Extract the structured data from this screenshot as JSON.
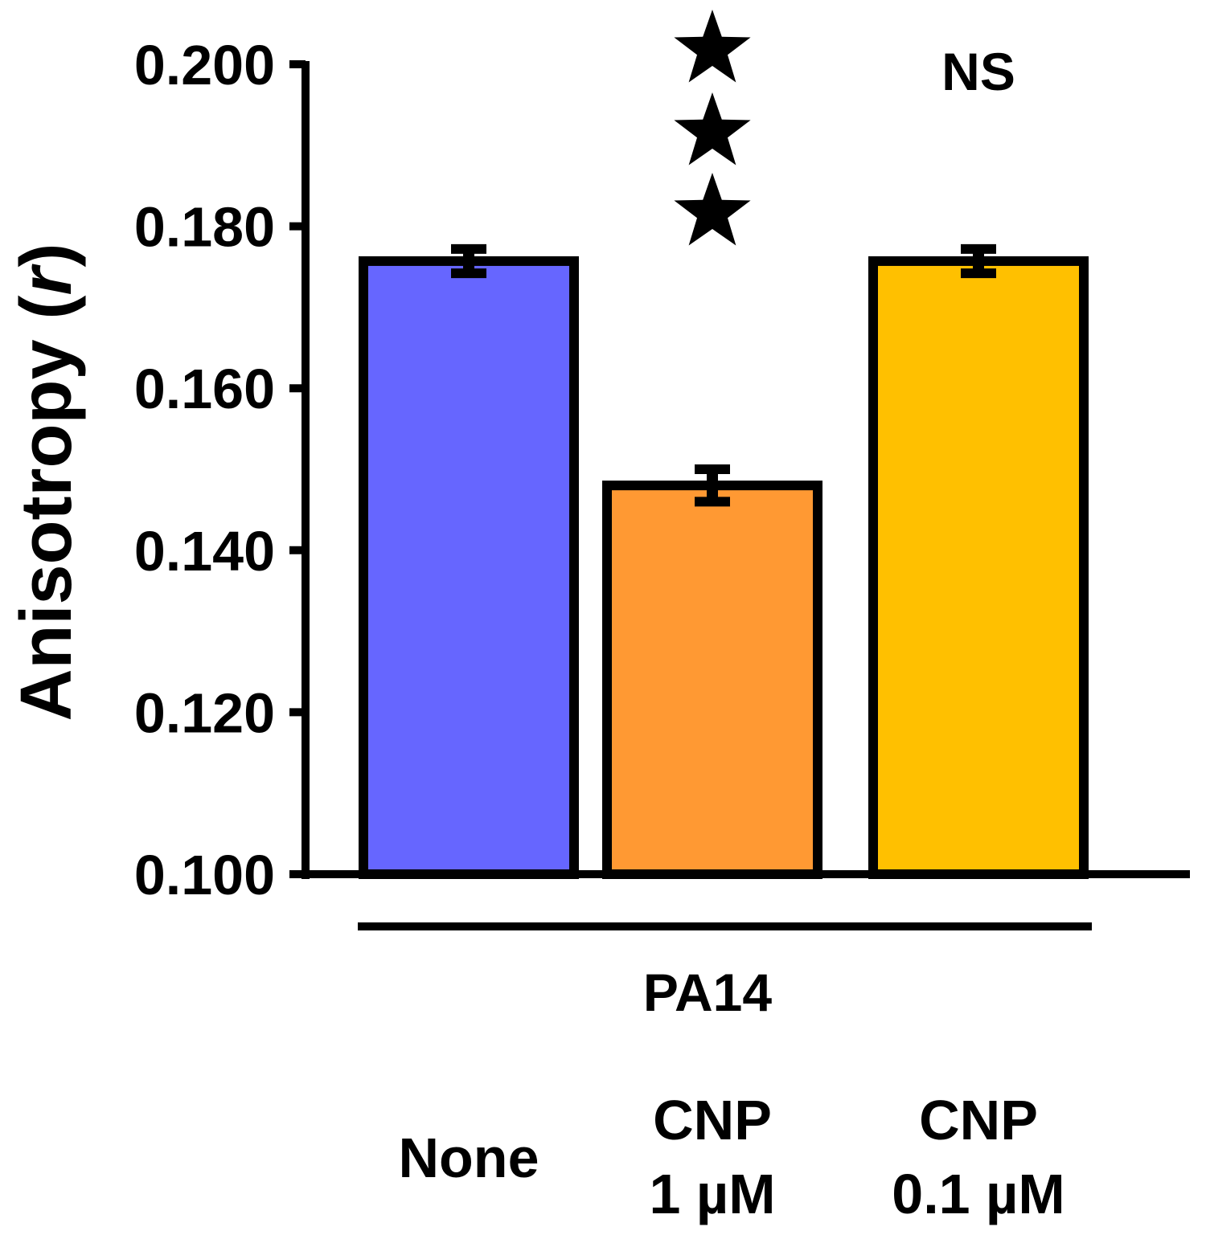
{
  "chart_data": {
    "type": "bar",
    "ylabel": "Anisotropy",
    "ylabel_symbol": "r",
    "ylim": [
      0.1,
      0.2
    ],
    "y_ticks": [
      "0.100",
      "0.120",
      "0.140",
      "0.160",
      "0.180",
      "0.200"
    ],
    "categories": [
      {
        "lines": [
          "None"
        ]
      },
      {
        "lines": [
          "CNP",
          "1 µM"
        ]
      },
      {
        "lines": [
          "CNP",
          "0.1 µM"
        ]
      }
    ],
    "values": [
      0.1757,
      0.148,
      0.1757
    ],
    "errors": [
      0.0015,
      0.002,
      0.0015
    ],
    "colors": [
      "#6666ff",
      "#ff9933",
      "#ffc000"
    ],
    "group_label": "PA14",
    "annotations": [
      {
        "category_index": 1,
        "type": "stars",
        "count": 3
      },
      {
        "category_index": 2,
        "type": "text",
        "text": "NS"
      }
    ],
    "grid": false
  }
}
